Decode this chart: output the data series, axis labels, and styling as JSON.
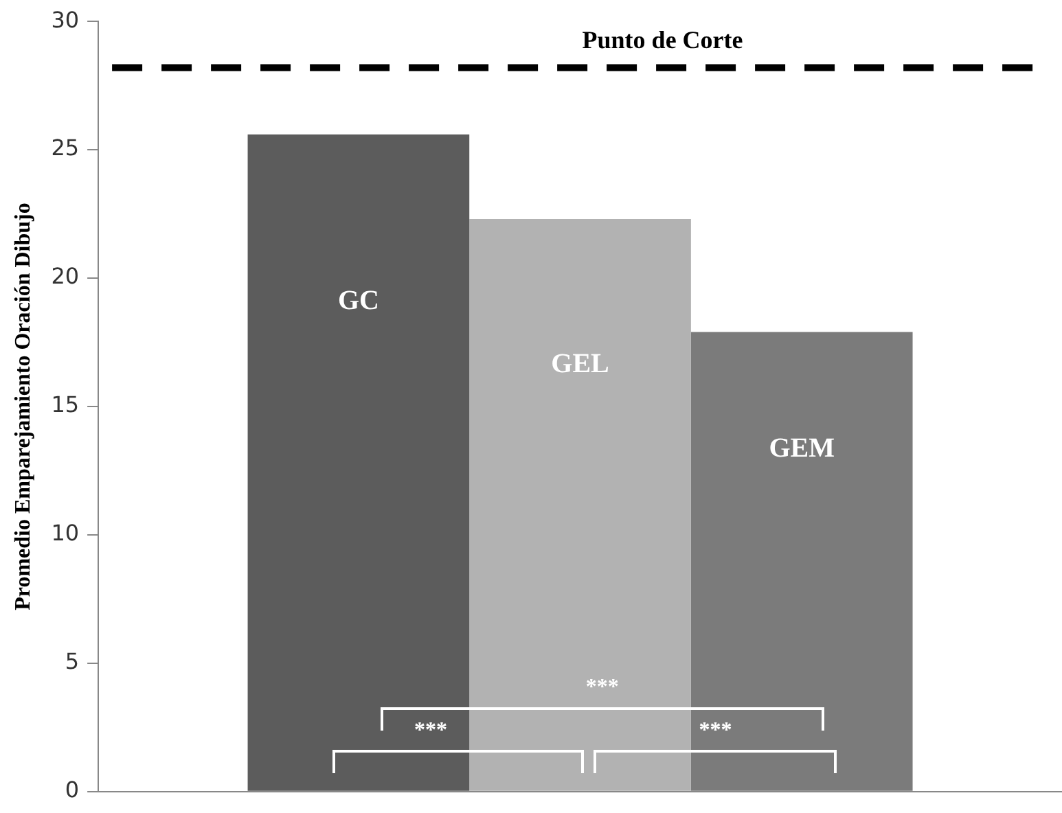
{
  "chart_data": {
    "type": "bar",
    "ylabel": "Promedio Emparejamiento Oración Dibujo",
    "categories": [
      null
    ],
    "series": [
      {
        "name": "GC",
        "color": "#5c5c5c",
        "values": [
          25.6
        ]
      },
      {
        "name": "GEL",
        "color": "#b2b2b2",
        "values": [
          22.3
        ]
      },
      {
        "name": "GEM",
        "color": "#7b7b7b",
        "values": [
          17.9
        ]
      }
    ],
    "ylim": [
      0,
      30
    ],
    "yticks": [
      0,
      5,
      10,
      15,
      20,
      25,
      30
    ],
    "grid": false,
    "ref_lines": [
      {
        "axis": "y",
        "value": 28.2,
        "label": "Punto de Corte",
        "color": "#000000",
        "line_style": "dashed"
      }
    ],
    "annotations": [
      "***",
      "***",
      "***"
    ]
  }
}
